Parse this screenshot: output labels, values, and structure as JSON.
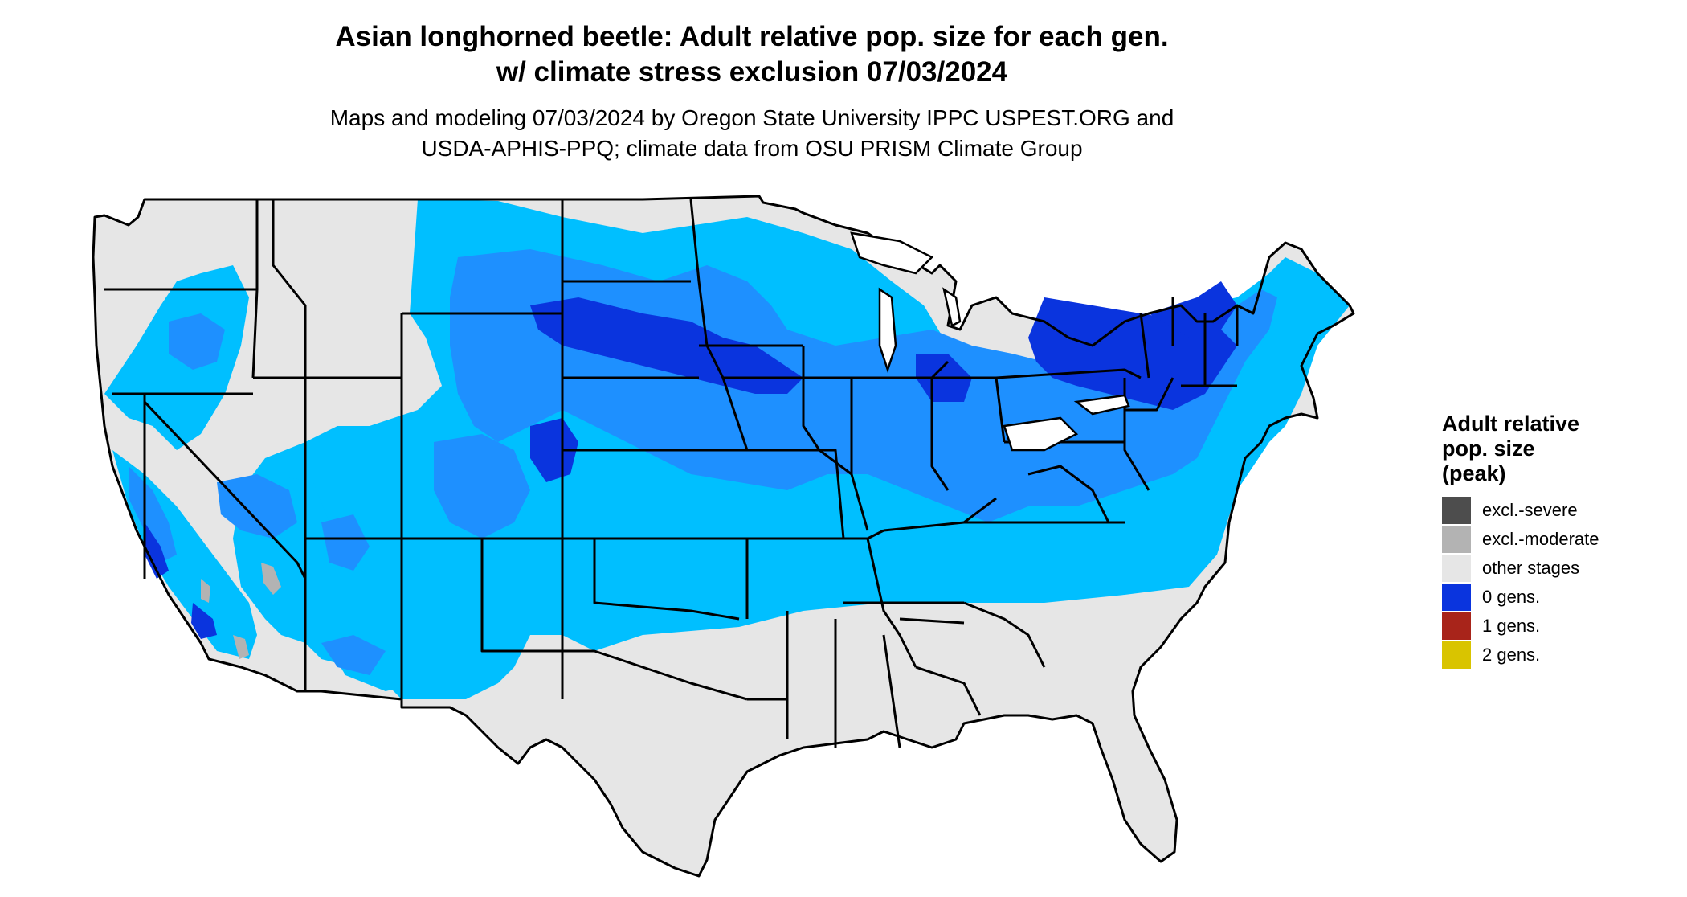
{
  "title": {
    "line1": "Asian longhorned beetle: Adult relative pop. size for each gen.",
    "line2": "w/ climate stress exclusion 07/03/2024"
  },
  "subtitle": {
    "line1": "Maps and modeling 07/03/2024 by Oregon State University IPPC USPEST.ORG and",
    "line2": "USDA-APHIS-PPQ; climate data from OSU PRISM Climate Group"
  },
  "legend": {
    "title_line1": "Adult relative",
    "title_line2": "pop. size",
    "title_line3": "(peak)",
    "items": [
      {
        "label": "excl.-severe",
        "color": "#4d4d4d"
      },
      {
        "label": "excl.-moderate",
        "color": "#b3b3b3"
      },
      {
        "label": "other stages",
        "color": "#e6e6e6"
      },
      {
        "label": "0 gens.",
        "color": "#0a34de"
      },
      {
        "label": "1 gens.",
        "color": "#a8241a"
      },
      {
        "label": "2 gens.",
        "color": "#d9c400"
      }
    ]
  },
  "map": {
    "region": "contiguous United States",
    "background_color": "#e6e6e6",
    "border_color": "#000000",
    "zone_colors": {
      "light": "#00bfff",
      "medium": "#1e90ff",
      "dark": "#0a34de",
      "excluded_moderate": "#b3b3b3"
    }
  }
}
